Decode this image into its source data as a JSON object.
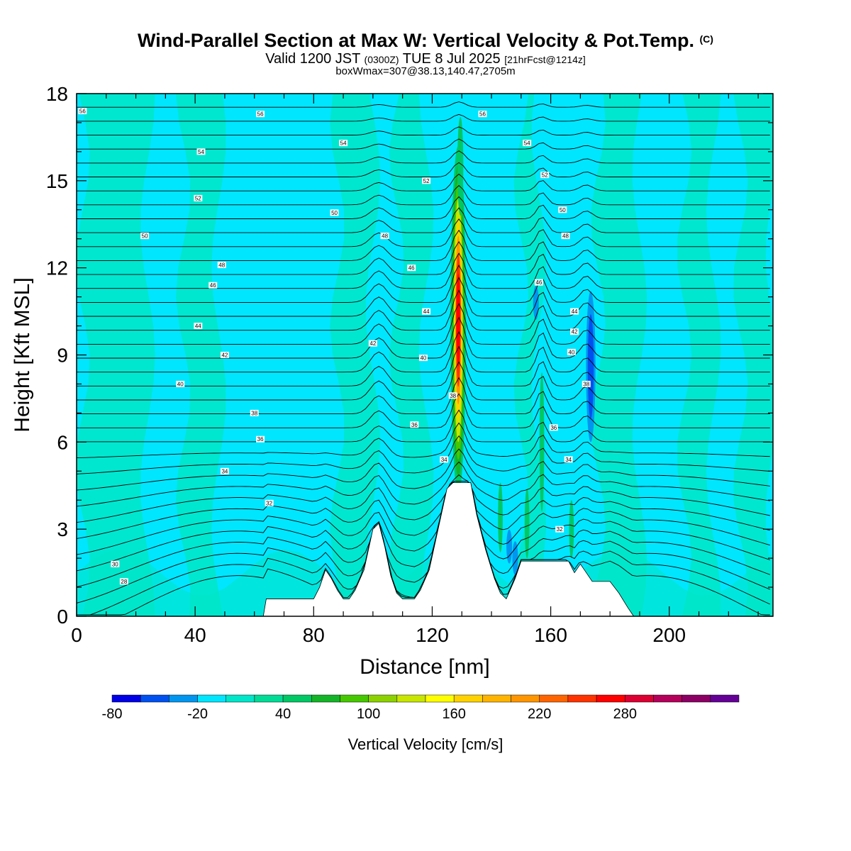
{
  "title": {
    "main": "Wind-Parallel Section at Max W: Vertical Velocity & Pot.Temp.",
    "copyright": "(C)"
  },
  "subtitle": {
    "valid_prefix": "Valid 1200 JST",
    "utc": "(0300Z)",
    "date": "TUE 8 Jul 2025",
    "forecast": "[21hrFcst@1214z]",
    "box_info": "boxWmax=307@38.13,140.47,2705m"
  },
  "chart_data": {
    "type": "heatmap",
    "xlabel": "Distance [nm]",
    "ylabel": "Height [Kft MSL]",
    "xlim": [
      0,
      235
    ],
    "ylim": [
      0,
      18
    ],
    "x_ticks": [
      0,
      40,
      80,
      120,
      160,
      200
    ],
    "y_ticks": [
      0,
      3,
      6,
      9,
      12,
      15,
      18
    ],
    "colorbar": {
      "label": "Vertical Velocity [cm/s]",
      "min": -80,
      "step": 20,
      "tick_labels": [
        "-80",
        "-20",
        "40",
        "100",
        "160",
        "220",
        "280"
      ],
      "tick_values": [
        -80,
        -20,
        40,
        100,
        160,
        220,
        280
      ],
      "colors": [
        "#0000e6",
        "#0050f0",
        "#0096f0",
        "#00e6ff",
        "#00e6c8",
        "#00dc96",
        "#00c864",
        "#14b428",
        "#46c800",
        "#8cd200",
        "#c8e600",
        "#ffff00",
        "#ffd200",
        "#ffb400",
        "#ff9600",
        "#ff6400",
        "#ff3200",
        "#ff0000",
        "#dc0032",
        "#b4005a",
        "#8c0064",
        "#640096"
      ]
    },
    "terrain_kft": [
      [
        0,
        0
      ],
      [
        63,
        0
      ],
      [
        64,
        0.6
      ],
      [
        80,
        0.6
      ],
      [
        82,
        1.0
      ],
      [
        84,
        1.6
      ],
      [
        86,
        1.3
      ],
      [
        88,
        0.9
      ],
      [
        90,
        0.6
      ],
      [
        92,
        0.6
      ],
      [
        94,
        0.9
      ],
      [
        97,
        1.6
      ],
      [
        100,
        3.0
      ],
      [
        102,
        3.2
      ],
      [
        104,
        2.4
      ],
      [
        106,
        1.4
      ],
      [
        108,
        0.8
      ],
      [
        110,
        0.6
      ],
      [
        114,
        0.6
      ],
      [
        116,
        0.9
      ],
      [
        119,
        1.6
      ],
      [
        122,
        3.0
      ],
      [
        125,
        4.4
      ],
      [
        127,
        4.6
      ],
      [
        133,
        4.6
      ],
      [
        135,
        3.5
      ],
      [
        138,
        2.3
      ],
      [
        141,
        1.3
      ],
      [
        143,
        0.8
      ],
      [
        145,
        0.6
      ],
      [
        148,
        1.3
      ],
      [
        150,
        1.9
      ],
      [
        166,
        1.9
      ],
      [
        168,
        1.5
      ],
      [
        170,
        1.8
      ],
      [
        172,
        1.5
      ],
      [
        174,
        1.2
      ],
      [
        180,
        1.2
      ],
      [
        183,
        0.8
      ],
      [
        186,
        0.3
      ],
      [
        188,
        0
      ],
      [
        235,
        0
      ]
    ],
    "theta_labels": [
      {
        "x": 2,
        "y": 17.4,
        "v": "56"
      },
      {
        "x": 62,
        "y": 17.3,
        "v": "56"
      },
      {
        "x": 137,
        "y": 17.3,
        "v": "56"
      },
      {
        "x": 42,
        "y": 16.0,
        "v": "54"
      },
      {
        "x": 90,
        "y": 16.3,
        "v": "54"
      },
      {
        "x": 152,
        "y": 16.3,
        "v": "54"
      },
      {
        "x": 118,
        "y": 15.0,
        "v": "52"
      },
      {
        "x": 158,
        "y": 15.2,
        "v": "52"
      },
      {
        "x": 41,
        "y": 14.4,
        "v": "52"
      },
      {
        "x": 87,
        "y": 13.9,
        "v": "50"
      },
      {
        "x": 164,
        "y": 14.0,
        "v": "50"
      },
      {
        "x": 23,
        "y": 13.1,
        "v": "50"
      },
      {
        "x": 104,
        "y": 13.1,
        "v": "48"
      },
      {
        "x": 165,
        "y": 13.1,
        "v": "48"
      },
      {
        "x": 49,
        "y": 12.1,
        "v": "48"
      },
      {
        "x": 113,
        "y": 12.0,
        "v": "46"
      },
      {
        "x": 156,
        "y": 11.5,
        "v": "46"
      },
      {
        "x": 46,
        "y": 11.4,
        "v": "46"
      },
      {
        "x": 118,
        "y": 10.5,
        "v": "44"
      },
      {
        "x": 168,
        "y": 10.5,
        "v": "44"
      },
      {
        "x": 41,
        "y": 10.0,
        "v": "44"
      },
      {
        "x": 168,
        "y": 9.8,
        "v": "42"
      },
      {
        "x": 100,
        "y": 9.4,
        "v": "42"
      },
      {
        "x": 50,
        "y": 9.0,
        "v": "42"
      },
      {
        "x": 167,
        "y": 9.1,
        "v": "40"
      },
      {
        "x": 117,
        "y": 8.9,
        "v": "40"
      },
      {
        "x": 35,
        "y": 8.0,
        "v": "40"
      },
      {
        "x": 172,
        "y": 8.0,
        "v": "38"
      },
      {
        "x": 127,
        "y": 7.6,
        "v": "38"
      },
      {
        "x": 60,
        "y": 7.0,
        "v": "38"
      },
      {
        "x": 114,
        "y": 6.6,
        "v": "36"
      },
      {
        "x": 161,
        "y": 6.5,
        "v": "36"
      },
      {
        "x": 62,
        "y": 6.1,
        "v": "36"
      },
      {
        "x": 124,
        "y": 5.4,
        "v": "34"
      },
      {
        "x": 166,
        "y": 5.4,
        "v": "34"
      },
      {
        "x": 50,
        "y": 5.0,
        "v": "34"
      },
      {
        "x": 65,
        "y": 3.9,
        "v": "32"
      },
      {
        "x": 163,
        "y": 3.0,
        "v": "32"
      },
      {
        "x": 13,
        "y": 1.8,
        "v": "30"
      },
      {
        "x": 16,
        "y": 1.2,
        "v": "28"
      }
    ]
  }
}
